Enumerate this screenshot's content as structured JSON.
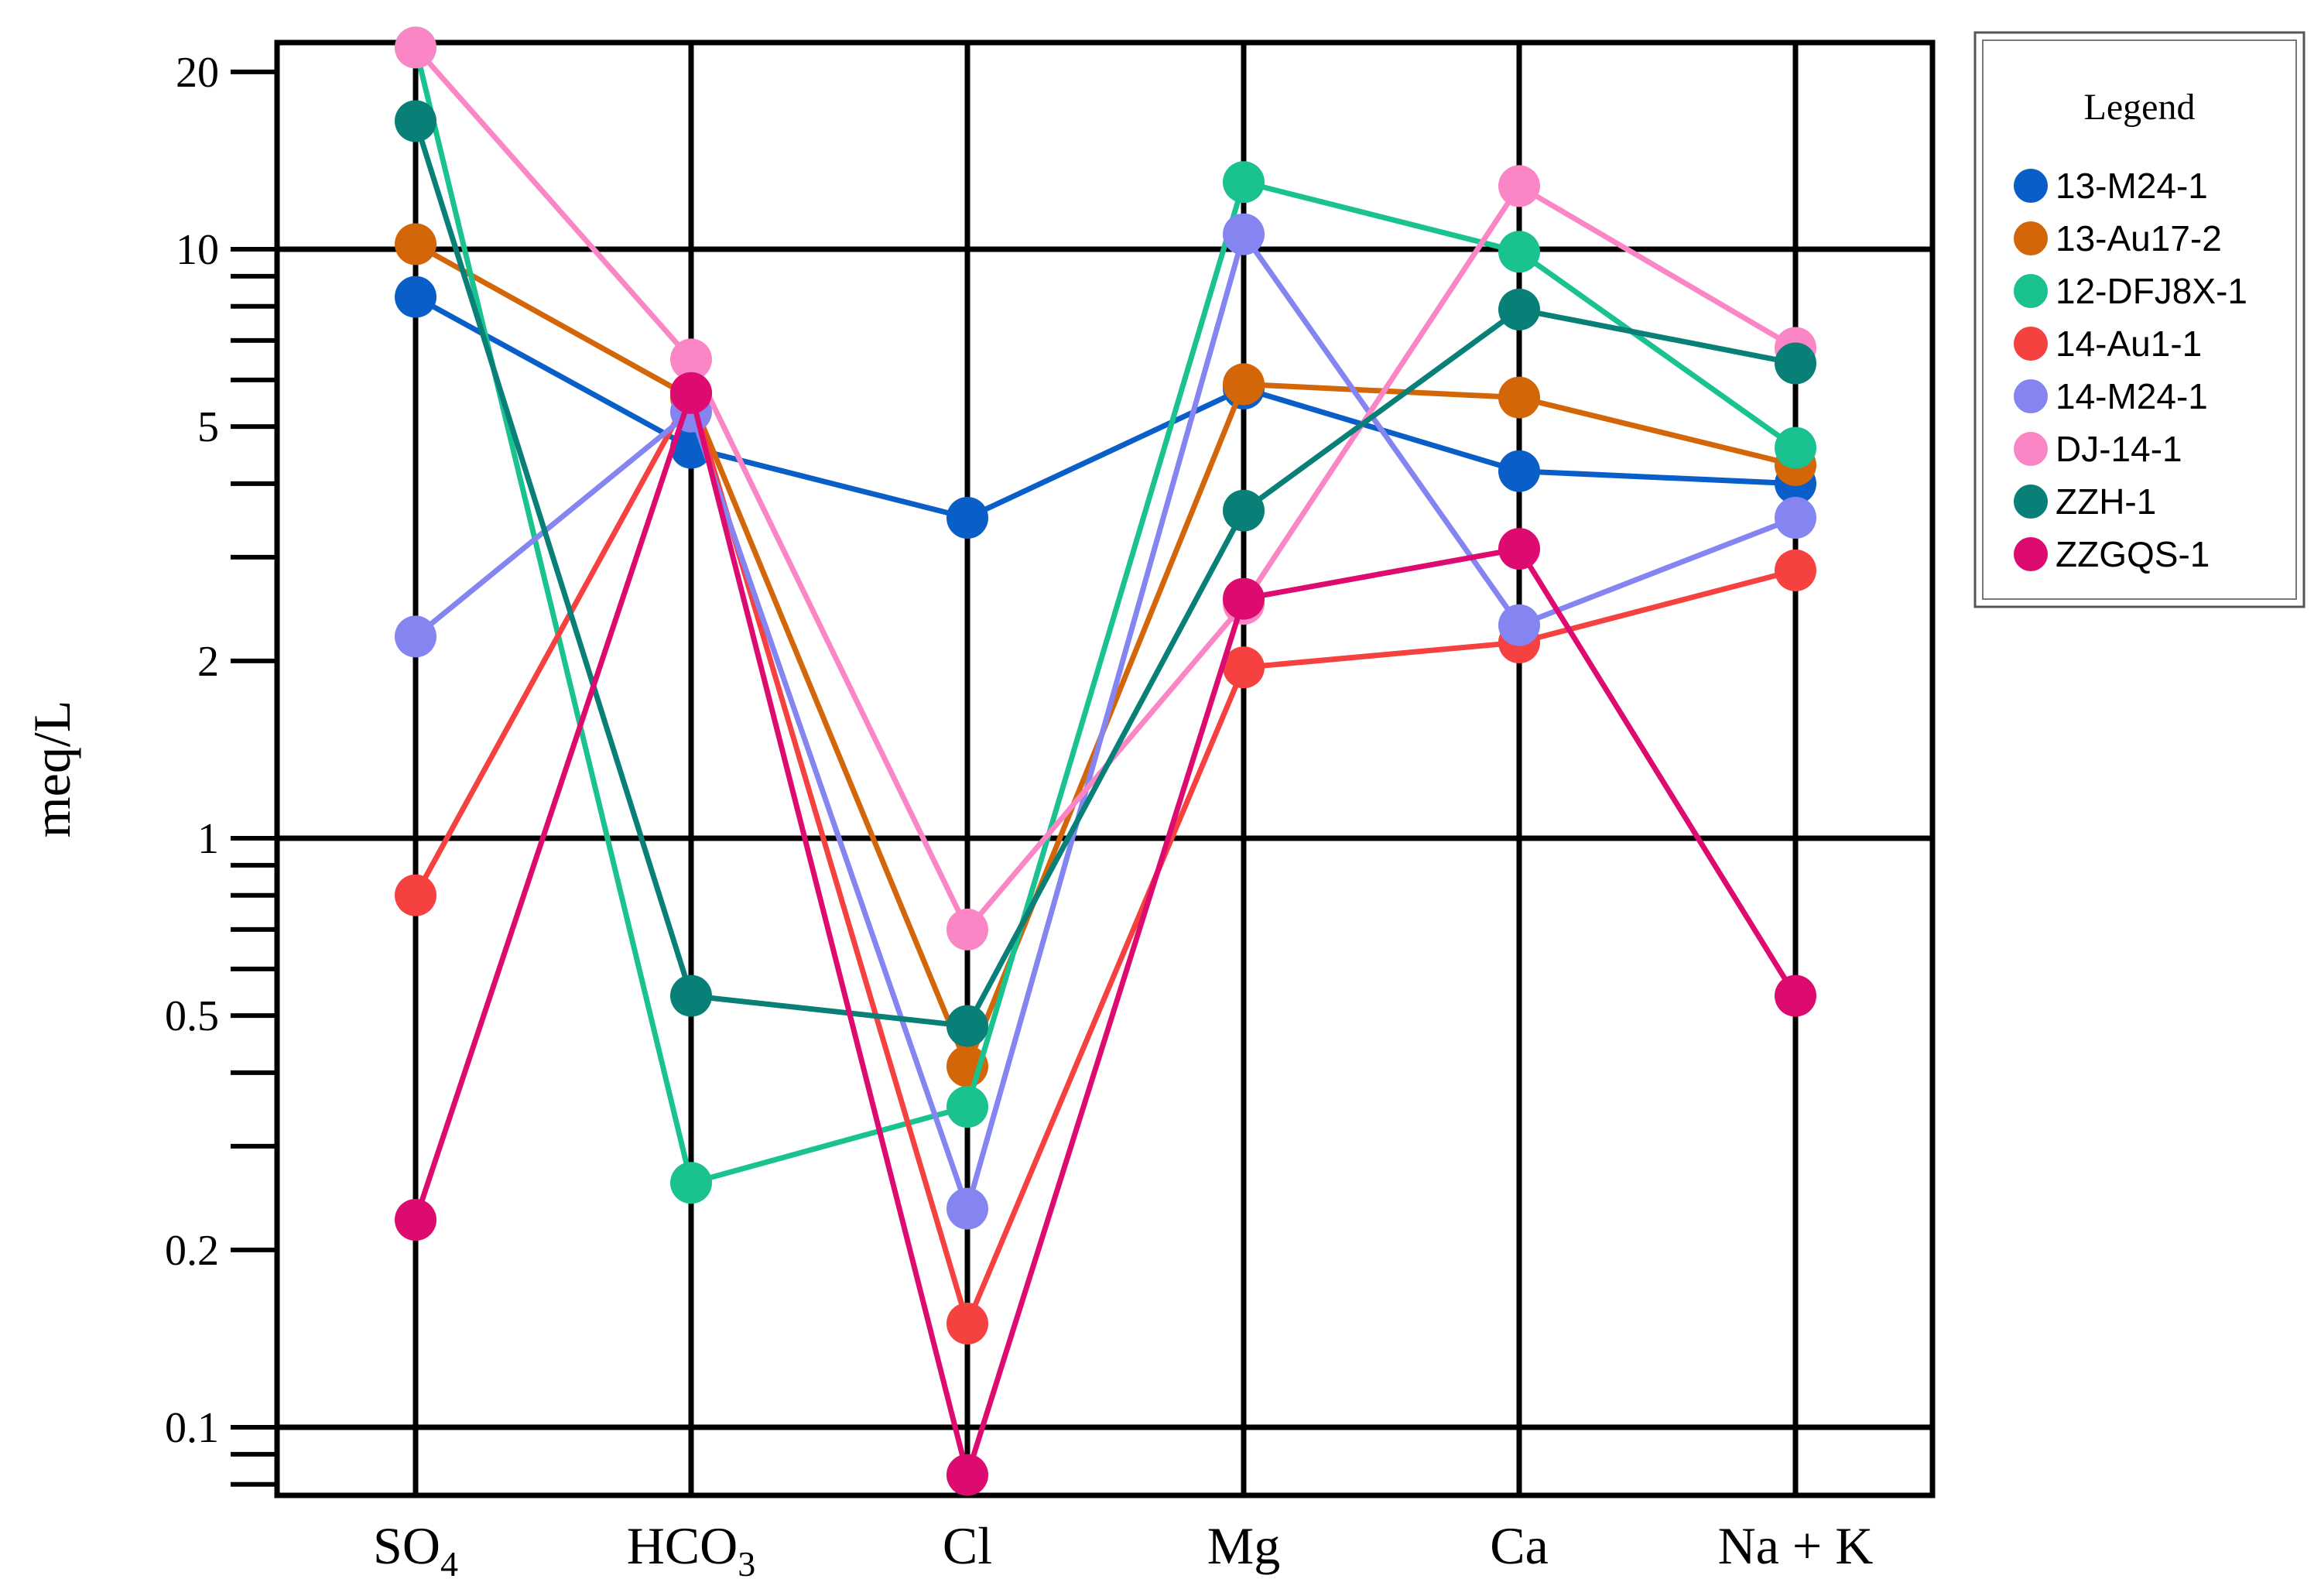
{
  "chart_data": {
    "type": "line",
    "ylabel": "meq/L",
    "yscale": "log",
    "ylim": [
      0.08,
      23
    ],
    "yticks_major": [
      0.1,
      0.2,
      0.5,
      1,
      2,
      5,
      10,
      20
    ],
    "ytick_labels": [
      "0.1",
      "0.2",
      "0.5",
      "1",
      "2",
      "5",
      "10",
      "20"
    ],
    "categories": [
      {
        "base": "SO",
        "sub": "4",
        "tail": ""
      },
      {
        "base": "HCO",
        "sub": "3",
        "tail": ""
      },
      {
        "base": "Cl",
        "sub": "",
        "tail": ""
      },
      {
        "base": "Mg",
        "sub": "",
        "tail": ""
      },
      {
        "base": "Ca",
        "sub": "",
        "tail": ""
      },
      {
        "base": "Na + K",
        "sub": "",
        "tail": ""
      }
    ],
    "legend": {
      "title": "Legend",
      "position": "right"
    },
    "grid": true,
    "series": [
      {
        "name": "13-M24-1",
        "color": "#0a5ec7",
        "values": [
          8.3,
          4.6,
          3.5,
          5.8,
          4.2,
          4.0
        ]
      },
      {
        "name": "13-Au17-2",
        "color": "#d4660a",
        "values": [
          10.2,
          5.6,
          0.41,
          5.9,
          5.6,
          4.3
        ]
      },
      {
        "name": "12-DFJ8X-1",
        "color": "#19c28f",
        "values": [
          22.0,
          0.26,
          0.35,
          13.0,
          9.9,
          4.6
        ]
      },
      {
        "name": "14-Au1-1",
        "color": "#f5413f",
        "values": [
          0.8,
          5.7,
          0.15,
          1.95,
          2.15,
          2.85
        ]
      },
      {
        "name": "14-M24-1",
        "color": "#8585f2",
        "values": [
          2.2,
          5.3,
          0.235,
          10.6,
          2.3,
          3.5
        ]
      },
      {
        "name": "DJ-14-1",
        "color": "#fb86c6",
        "values": [
          22.0,
          6.5,
          0.7,
          2.5,
          12.8,
          6.8
        ]
      },
      {
        "name": "ZZH-1",
        "color": "#087f77",
        "values": [
          16.5,
          0.54,
          0.48,
          3.6,
          7.9,
          6.4
        ]
      },
      {
        "name": "ZZGQS-1",
        "color": "#dd0b70",
        "values": [
          0.225,
          5.7,
          0.083,
          2.55,
          3.1,
          0.54
        ]
      }
    ]
  }
}
